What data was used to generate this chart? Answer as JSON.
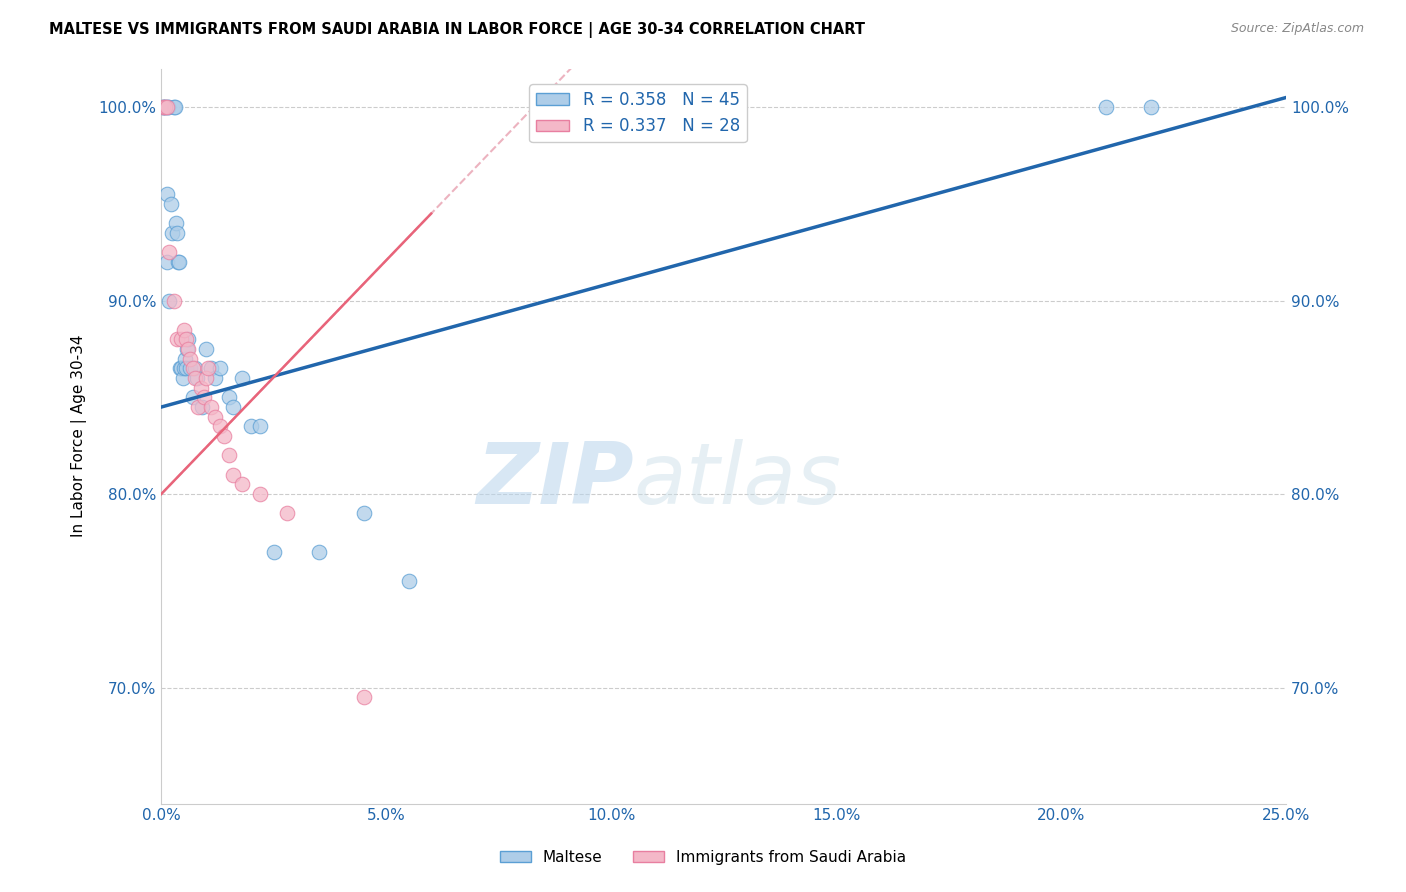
{
  "title": "MALTESE VS IMMIGRANTS FROM SAUDI ARABIA IN LABOR FORCE | AGE 30-34 CORRELATION CHART",
  "source": "Source: ZipAtlas.com",
  "ylabel": "In Labor Force | Age 30-34",
  "xlim": [
    0.0,
    25.0
  ],
  "ylim": [
    64.0,
    102.0
  ],
  "xticks": [
    0.0,
    5.0,
    10.0,
    15.0,
    20.0,
    25.0
  ],
  "xtick_labels": [
    "0.0%",
    "5.0%",
    "10.0%",
    "15.0%",
    "20.0%",
    "25.0%"
  ],
  "yticks": [
    70.0,
    80.0,
    90.0,
    100.0
  ],
  "ytick_labels": [
    "70.0%",
    "80.0%",
    "90.0%",
    "100.0%"
  ],
  "grid_color": "#cccccc",
  "background_color": "#ffffff",
  "maltese_color": "#aecde8",
  "saudi_color": "#f4b8c8",
  "maltese_edge_color": "#5b9fd4",
  "saudi_edge_color": "#e87fa0",
  "blue_line_color": "#2166ac",
  "pink_line_color": "#e8647a",
  "pink_line_dash_color": "#e8a0b0",
  "R_maltese": 0.358,
  "N_maltese": 45,
  "R_saudi": 0.337,
  "N_saudi": 28,
  "legend_label_maltese": "Maltese",
  "legend_label_saudi": "Immigrants from Saudi Arabia",
  "watermark_zip": "ZIP",
  "watermark_atlas": "atlas",
  "blue_line_x0": 0.0,
  "blue_line_y0": 84.5,
  "blue_line_x1": 25.0,
  "blue_line_y1": 100.5,
  "pink_line_x0": 0.0,
  "pink_line_y0": 80.0,
  "pink_line_x1": 6.0,
  "pink_line_y1": 94.5,
  "maltese_x": [
    0.05,
    0.05,
    0.08,
    0.08,
    0.12,
    0.12,
    0.15,
    0.15,
    0.18,
    0.22,
    0.25,
    0.28,
    0.3,
    0.32,
    0.35,
    0.38,
    0.4,
    0.42,
    0.45,
    0.48,
    0.5,
    0.52,
    0.55,
    0.58,
    0.6,
    0.65,
    0.7,
    0.75,
    0.8,
    0.9,
    1.0,
    1.1,
    1.2,
    1.3,
    1.5,
    1.6,
    1.8,
    2.0,
    2.2,
    2.5,
    3.5,
    4.5,
    5.5,
    21.0,
    22.0
  ],
  "maltese_y": [
    100.0,
    100.0,
    100.0,
    100.0,
    95.5,
    92.0,
    100.0,
    100.0,
    90.0,
    95.0,
    93.5,
    100.0,
    100.0,
    94.0,
    93.5,
    92.0,
    92.0,
    86.5,
    86.5,
    86.0,
    86.5,
    87.0,
    86.5,
    87.5,
    88.0,
    86.5,
    85.0,
    86.5,
    86.0,
    84.5,
    87.5,
    86.5,
    86.0,
    86.5,
    85.0,
    84.5,
    86.0,
    83.5,
    83.5,
    77.0,
    77.0,
    79.0,
    75.5,
    100.0,
    100.0
  ],
  "saudi_x": [
    0.05,
    0.08,
    0.12,
    0.18,
    0.28,
    0.35,
    0.45,
    0.5,
    0.55,
    0.6,
    0.65,
    0.7,
    0.75,
    0.82,
    0.88,
    0.95,
    1.0,
    1.05,
    1.1,
    1.2,
    1.3,
    1.4,
    1.5,
    1.6,
    1.8,
    2.2,
    2.8,
    4.5
  ],
  "saudi_y": [
    100.0,
    100.0,
    100.0,
    92.5,
    90.0,
    88.0,
    88.0,
    88.5,
    88.0,
    87.5,
    87.0,
    86.5,
    86.0,
    84.5,
    85.5,
    85.0,
    86.0,
    86.5,
    84.5,
    84.0,
    83.5,
    83.0,
    82.0,
    81.0,
    80.5,
    80.0,
    79.0,
    69.5
  ]
}
